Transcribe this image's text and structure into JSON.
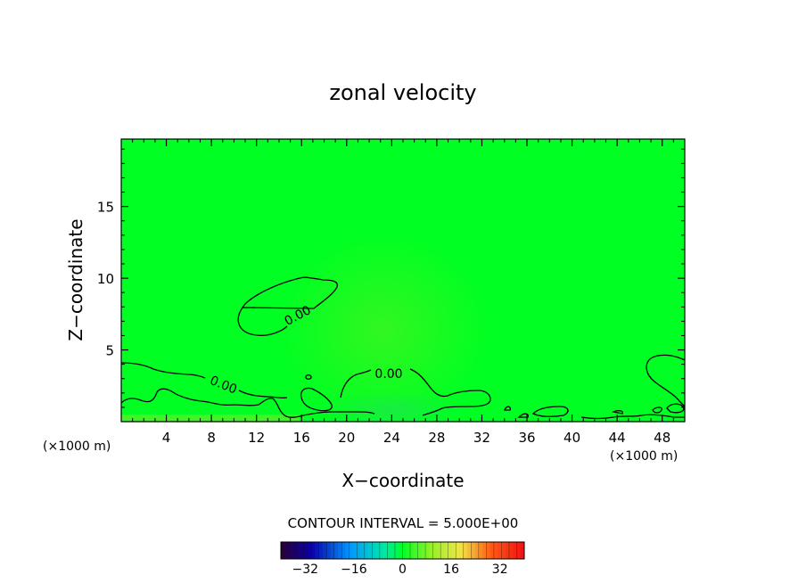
{
  "chart_data": {
    "type": "heatmap",
    "title": "zonal velocity",
    "xlabel": "X−coordinate",
    "ylabel": "Z−coordinate",
    "x_unit_label_left": "(×1000 m)",
    "x_unit_label_right": "(×1000 m)",
    "xlim": [
      0,
      50
    ],
    "ylim": [
      0,
      19.7
    ],
    "x_ticks": [
      4,
      8,
      12,
      16,
      20,
      24,
      28,
      32,
      36,
      40,
      44,
      48
    ],
    "y_ticks": [
      5,
      10,
      15
    ],
    "field_color": "#00ff22",
    "contour_labels": [
      "0.00",
      "0.00",
      "0.00"
    ],
    "contour_interval_text": "CONTOUR INTERVAL = 5.000E+00",
    "colorbar": {
      "min": -40,
      "max": 40,
      "tick_values": [
        -32,
        -16,
        0,
        16,
        32
      ],
      "tick_labels": [
        "−32",
        "−16",
        "0",
        "16",
        "32"
      ]
    }
  }
}
